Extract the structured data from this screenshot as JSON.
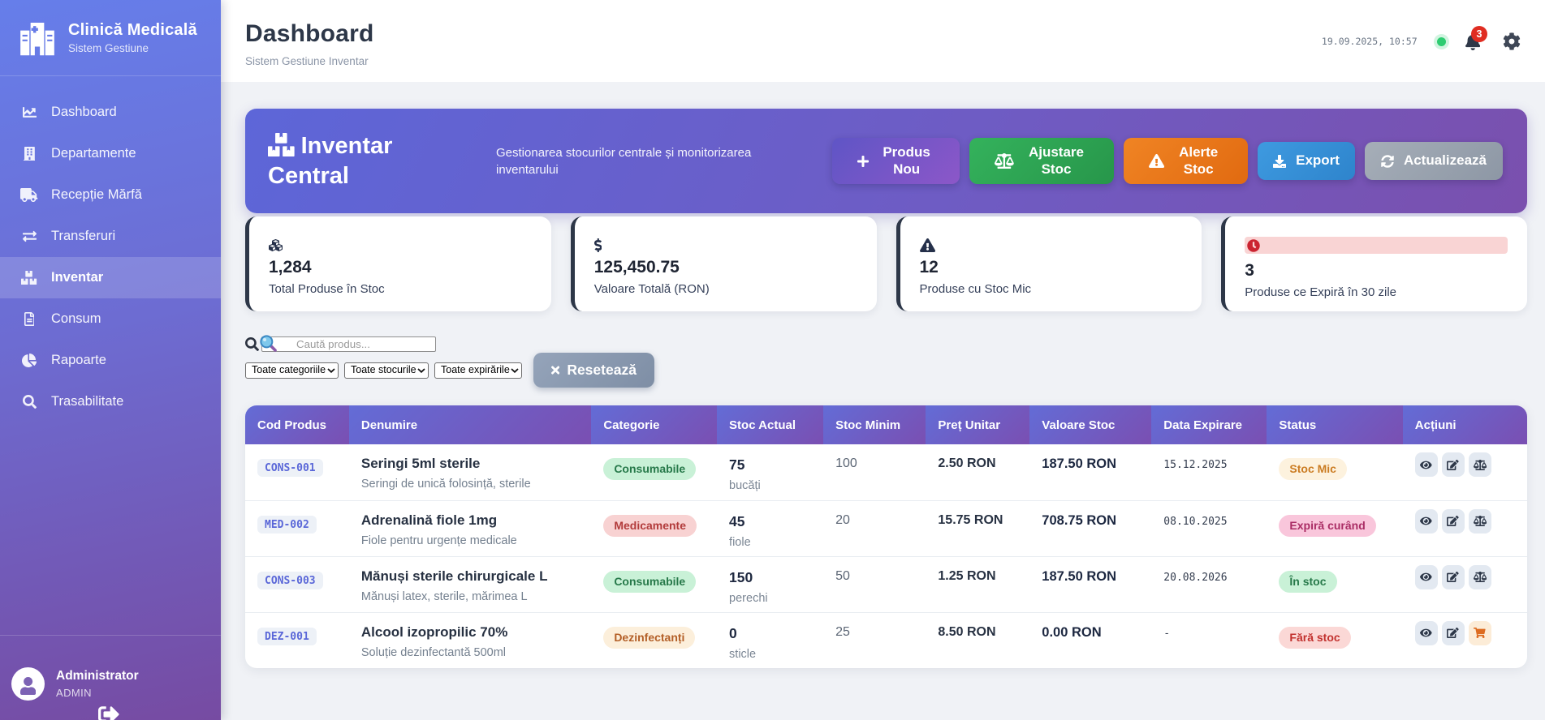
{
  "colors": {
    "sidebar_gradient_start": "#667eea",
    "sidebar_gradient_end": "#764ba2",
    "accent_indigo": "#5a67d8",
    "success_green": "#2da24f",
    "warning_orange": "#e8791f",
    "info_blue": "#3490dc",
    "danger_red": "#e02d22",
    "status_dot_green": "#2ecc71"
  },
  "sidebar": {
    "brand": {
      "icon": "hospital",
      "title": "Clinică Medicală",
      "subtitle": "Sistem Gestiune"
    },
    "items": [
      {
        "icon": "chart-line",
        "label": "Dashboard",
        "active": false
      },
      {
        "icon": "building",
        "label": "Departamente",
        "active": false
      },
      {
        "icon": "truck",
        "label": "Recepție Mărfă",
        "active": false
      },
      {
        "icon": "exchange",
        "label": "Transferuri",
        "active": false
      },
      {
        "icon": "boxes",
        "label": "Inventar",
        "active": true
      },
      {
        "icon": "file",
        "label": "Consum",
        "active": false
      },
      {
        "icon": "chart-pie",
        "label": "Rapoarte",
        "active": false
      },
      {
        "icon": "search",
        "label": "Trasabilitate",
        "active": false
      }
    ],
    "user": {
      "avatar_icon": "user",
      "name": "Administrator",
      "role": "ADMIN",
      "logout_icon": "sign-out"
    }
  },
  "header": {
    "title": "Dashboard",
    "subtitle": "Sistem Gestiune Inventar",
    "datetime": "19.09.2025, 10:57",
    "notification_count": "3",
    "bell_icon": "bell",
    "settings_icon": "gear"
  },
  "hero": {
    "icon": "boxes",
    "title": "Inventar Central",
    "description": "Gestionarea stocurilor centrale și monitorizarea inventarului",
    "buttons": [
      {
        "icon": "plus",
        "label": "Produs Nou",
        "style": "purple"
      },
      {
        "icon": "balance",
        "label": "Ajustare Stoc",
        "style": "green"
      },
      {
        "icon": "warning",
        "label": "Alerte Stoc",
        "style": "orange"
      },
      {
        "icon": "download",
        "label": "Export",
        "style": "blue"
      },
      {
        "icon": "sync",
        "label": "Actualizează",
        "style": "gray"
      }
    ]
  },
  "stats": [
    {
      "icon": "cubes",
      "value": "1,284",
      "label": "Total Produse în Stoc",
      "alert": false
    },
    {
      "icon": "dollar",
      "value": "125,450.75",
      "label": "Valoare Totală (RON)",
      "alert": false
    },
    {
      "icon": "warning",
      "value": "12",
      "label": "Produse cu Stoc Mic",
      "alert": false
    },
    {
      "icon": "clock",
      "value": "3",
      "label": "Produse ce Expiră în 30 zile",
      "alert": true
    }
  ],
  "filters": {
    "search_icon": "search",
    "search_placeholder": "Caută produs...",
    "selects": [
      {
        "value": "Toate categoriile"
      },
      {
        "value": "Toate stocurile"
      },
      {
        "value": "Toate expirările"
      }
    ],
    "reset": {
      "icon": "times",
      "label": "Resetează"
    }
  },
  "table": {
    "columns": [
      {
        "label": "Cod Produs"
      },
      {
        "label": "Denumire"
      },
      {
        "label": "Categorie"
      },
      {
        "label": "Stoc Actual"
      },
      {
        "label": "Stoc Minim"
      },
      {
        "label": "Preț Unitar"
      },
      {
        "label": "Valoare Stoc"
      },
      {
        "label": "Data Expirare"
      },
      {
        "label": "Status"
      },
      {
        "label": "Acțiuni"
      }
    ],
    "rows": [
      {
        "code": "CONS-001",
        "name": "Seringi 5ml sterile",
        "description": "Seringi de unică folosință, sterile",
        "category": "Consumabile",
        "category_style": "pill-green",
        "stock": "75",
        "unit": "bucăți",
        "min": "100",
        "price": "2.50 RON",
        "value": "187.50 RON",
        "expiry": "15.12.2025",
        "status": "Stoc Mic",
        "status_style": "pill-amber",
        "actions": [
          {
            "icon": "eye",
            "style": ""
          },
          {
            "icon": "edit",
            "style": ""
          },
          {
            "icon": "balance",
            "style": ""
          }
        ]
      },
      {
        "code": "MED-002",
        "name": "Adrenalină fiole 1mg",
        "description": "Fiole pentru urgențe medicale",
        "category": "Medicamente",
        "category_style": "pill-red",
        "stock": "45",
        "unit": "fiole",
        "min": "20",
        "price": "15.75 RON",
        "value": "708.75 RON",
        "expiry": "08.10.2025",
        "status": "Expiră curând",
        "status_style": "pill-pink",
        "actions": [
          {
            "icon": "eye",
            "style": ""
          },
          {
            "icon": "edit",
            "style": ""
          },
          {
            "icon": "balance",
            "style": ""
          }
        ]
      },
      {
        "code": "CONS-003",
        "name": "Mănuși sterile chirurgicale L",
        "description": "Mănuși latex, sterile, mărimea L",
        "category": "Consumabile",
        "category_style": "pill-green",
        "stock": "150",
        "unit": "perechi",
        "min": "50",
        "price": "1.25 RON",
        "value": "187.50 RON",
        "expiry": "20.08.2026",
        "status": "În stoc",
        "status_style": "pill-green",
        "actions": [
          {
            "icon": "eye",
            "style": ""
          },
          {
            "icon": "edit",
            "style": ""
          },
          {
            "icon": "balance",
            "style": ""
          }
        ]
      },
      {
        "code": "DEZ-001",
        "name": "Alcool izopropilic 70%",
        "description": "Soluție dezinfectantă 500ml",
        "category": "Dezinfectanți",
        "category_style": "pill-orange",
        "stock": "0",
        "unit": "sticle",
        "min": "25",
        "price": "8.50 RON",
        "value": "0.00 RON",
        "expiry": "-",
        "status": "Fără stoc",
        "status_style": "pill-lightred",
        "actions": [
          {
            "icon": "eye",
            "style": ""
          },
          {
            "icon": "edit",
            "style": ""
          },
          {
            "icon": "cart",
            "style": "act-orange"
          }
        ]
      }
    ]
  }
}
